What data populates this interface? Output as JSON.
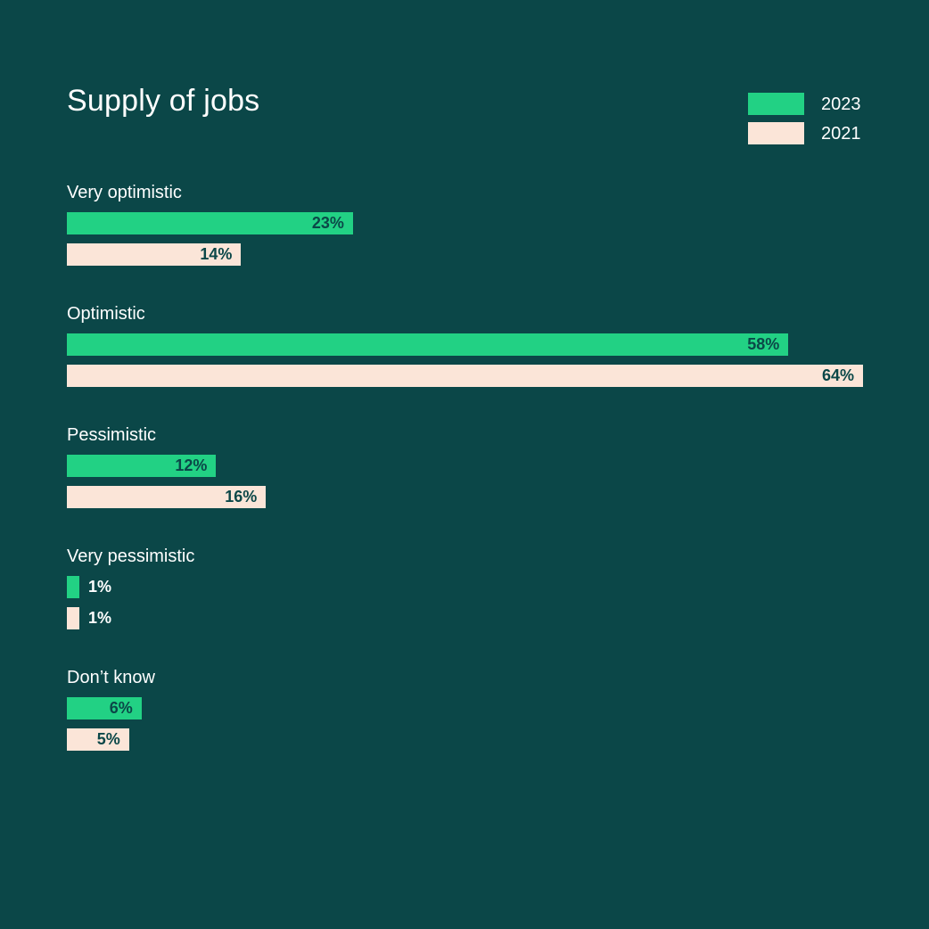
{
  "chart_data": {
    "type": "bar",
    "orientation": "horizontal",
    "title": "Supply of jobs",
    "categories": [
      "Very optimistic",
      "Optimistic",
      "Pessimistic",
      "Very pessimistic",
      "Don’t know"
    ],
    "series": [
      {
        "name": "2023",
        "values": [
          23,
          58,
          12,
          1,
          6
        ],
        "labels": [
          "23%",
          "58%",
          "12%",
          "1%",
          "6%"
        ],
        "color": "#22d184"
      },
      {
        "name": "2021",
        "values": [
          14,
          64,
          16,
          1,
          5
        ],
        "labels": [
          "14%",
          "64%",
          "16%",
          "1%",
          "5%"
        ],
        "color": "#fbe5d8"
      }
    ],
    "xlim": [
      0,
      64
    ],
    "legend_position": "top-right",
    "grid": false,
    "colors": {
      "background": "#0b4748",
      "text": "#ffffff",
      "value_label_dark": "#0b4748",
      "value_label_light": "#ffffff"
    }
  }
}
